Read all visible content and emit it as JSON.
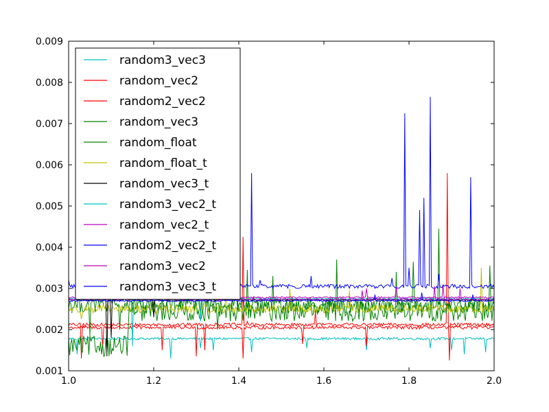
{
  "chart_data": {
    "type": "line",
    "title": "",
    "xlabel": "",
    "ylabel": "",
    "xlim": [
      1.0,
      2.0
    ],
    "ylim": [
      0.001,
      0.009
    ],
    "x_ticks": [
      "1.0",
      "1.2",
      "1.4",
      "1.6",
      "1.8",
      "2.0"
    ],
    "y_ticks": [
      "0.001",
      "0.002",
      "0.003",
      "0.004",
      "0.005",
      "0.006",
      "0.007",
      "0.008",
      "0.009"
    ],
    "grid": false,
    "legend_position": "top-left",
    "x_start": 1.0,
    "x_end": 2.0,
    "series": [
      {
        "name": "random3_vec3",
        "color": "#00bfbf",
        "base": 0.00178,
        "noise": 3e-05,
        "spikes": [
          [
            1.02,
            0.0014
          ],
          [
            1.24,
            0.0013
          ],
          [
            1.31,
            0.00155
          ],
          [
            1.34,
            0.0015
          ],
          [
            1.43,
            0.00145
          ],
          [
            1.56,
            0.00155
          ],
          [
            1.7,
            0.0015
          ],
          [
            1.85,
            0.00155
          ],
          [
            1.9,
            0.0015
          ],
          [
            1.93,
            0.0014
          ],
          [
            1.98,
            0.00145
          ]
        ]
      },
      {
        "name": "random_vec2",
        "color": "#ff0000",
        "base": 0.00212,
        "noise": 4e-05,
        "spikes": [
          [
            1.03,
            0.0013
          ],
          [
            1.32,
            0.0015
          ],
          [
            1.41,
            0.00425
          ],
          [
            1.42,
            0.0022
          ],
          [
            1.58,
            0.00245
          ],
          [
            1.89,
            0.0058
          ],
          [
            1.895,
            0.00125
          ]
        ]
      },
      {
        "name": "random2_vec2",
        "color": "#ff0000",
        "base": 0.00205,
        "noise": 4e-05,
        "spikes": [
          [
            1.08,
            0.00155
          ],
          [
            1.22,
            0.0015
          ],
          [
            1.3,
            0.00135
          ],
          [
            1.41,
            0.0013
          ],
          [
            1.55,
            0.00165
          ],
          [
            1.7,
            0.0016
          ]
        ]
      },
      {
        "name": "random_vec3",
        "color": "#008000",
        "base": 0.00245,
        "noise": 0.00025,
        "spikes": [
          [
            1.05,
            0.00185
          ],
          [
            1.14,
            0.002
          ],
          [
            1.42,
            0.00345
          ],
          [
            1.63,
            0.0037
          ],
          [
            1.77,
            0.0034
          ],
          [
            1.87,
            0.00445
          ],
          [
            1.99,
            0.00355
          ]
        ],
        "low_segment": [
          1.0,
          1.14,
          0.0016
        ]
      },
      {
        "name": "random_float",
        "color": "#008000",
        "base": 0.0026,
        "noise": 0.0002,
        "spikes": [
          [
            1.05,
            0.00185
          ],
          [
            1.12,
            0.002
          ],
          [
            1.35,
            0.002
          ],
          [
            1.48,
            0.0033
          ],
          [
            1.81,
            0.00365
          ]
        ]
      },
      {
        "name": "random_float_t",
        "color": "#bfbf00",
        "base": 0.0025,
        "noise": 0.0001,
        "spikes": [
          [
            1.03,
            0.00225
          ],
          [
            1.37,
            0.00305
          ],
          [
            1.52,
            0.003
          ],
          [
            1.66,
            0.00295
          ],
          [
            1.97,
            0.0035
          ]
        ]
      },
      {
        "name": "random_vec3_t",
        "color": "#000000",
        "base": 0.00272,
        "noise": 2e-05,
        "spikes": [
          [
            1.09,
            0.00135
          ],
          [
            1.1,
            0.0018
          ],
          [
            1.2,
            0.0023
          ]
        ]
      },
      {
        "name": "random3_vec2_t",
        "color": "#00bfbf",
        "base": 0.00275,
        "noise": 2e-05,
        "spikes": [
          [
            1.15,
            0.0016
          ],
          [
            1.31,
            0.0022
          ]
        ]
      },
      {
        "name": "random_vec2_t",
        "color": "#bf00bf",
        "base": 0.00278,
        "noise": 2e-05,
        "spikes": [
          [
            1.7,
            0.003
          ],
          [
            1.77,
            0.00305
          ],
          [
            1.88,
            0.0031
          ]
        ]
      },
      {
        "name": "random2_vec2_t",
        "color": "#0000ff",
        "base": 0.00305,
        "noise": 5e-05,
        "spikes": [
          [
            1.0,
            0.0032
          ],
          [
            1.21,
            0.0033
          ],
          [
            1.32,
            0.0033
          ],
          [
            1.4,
            0.0035
          ],
          [
            1.43,
            0.0058
          ],
          [
            1.45,
            0.0032
          ],
          [
            1.57,
            0.0033
          ],
          [
            1.76,
            0.00325
          ],
          [
            1.79,
            0.00725
          ],
          [
            1.8,
            0.0035
          ],
          [
            1.825,
            0.0049
          ],
          [
            1.835,
            0.0052
          ],
          [
            1.85,
            0.00765
          ],
          [
            1.87,
            0.00335
          ],
          [
            1.945,
            0.0057
          ]
        ]
      },
      {
        "name": "random3_vec2",
        "color": "#bf00bf",
        "base": 0.00273,
        "noise": 2e-05,
        "spikes": [
          [
            1.69,
            0.00295
          ],
          [
            1.86,
            0.00305
          ],
          [
            1.92,
            0.003
          ]
        ]
      },
      {
        "name": "random3_vec3_t",
        "color": "#0000ff",
        "base": 0.0027,
        "noise": 2e-05,
        "spikes": [
          [
            1.72,
            0.00285
          ],
          [
            1.83,
            0.0029
          ],
          [
            1.95,
            0.00285
          ]
        ]
      }
    ]
  }
}
